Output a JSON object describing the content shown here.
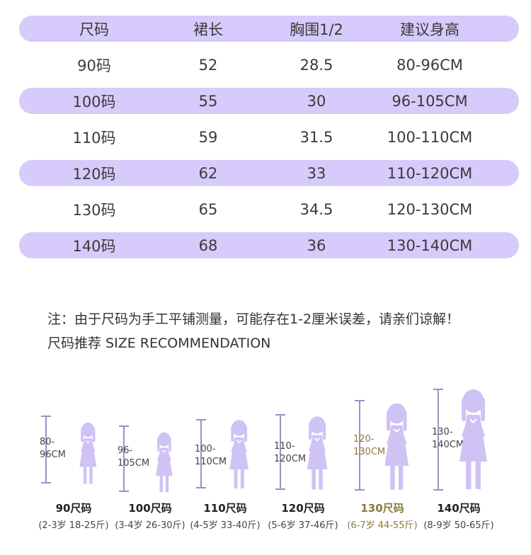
{
  "table": {
    "headers": [
      "尺码",
      "裙长",
      "胸围1/2",
      "建议身高"
    ],
    "rows": [
      [
        "90码",
        "52",
        "28.5",
        "80-96CM"
      ],
      [
        "100码",
        "55",
        "30",
        "96-105CM"
      ],
      [
        "110码",
        "59",
        "31.5",
        "100-110CM"
      ],
      [
        "120码",
        "62",
        "33",
        "110-120CM"
      ],
      [
        "130码",
        "65",
        "34.5",
        "120-130CM"
      ],
      [
        "140码",
        "68",
        "36",
        "130-140CM"
      ]
    ]
  },
  "note": "注：由于尺码为手工平铺测量，可能存在1-2厘米误差，请亲们谅解！",
  "recommendation_title": "尺码推荐  SIZE RECOMMENDATION",
  "sizes": [
    {
      "range_top": "80-",
      "range_bottom": "96CM",
      "name": "90尺码",
      "ages": "(2-3岁 18-25斤)",
      "highlight": false
    },
    {
      "range_top": "96-",
      "range_bottom": "105CM",
      "name": "100尺码",
      "ages": "(3-4岁 26-30斤)",
      "highlight": false
    },
    {
      "range_top": "100-",
      "range_bottom": "110CM",
      "name": "110尺码",
      "ages": "(4-5岁 33-40斤)",
      "highlight": false
    },
    {
      "range_top": "110-",
      "range_bottom": "120CM",
      "name": "120尺码",
      "ages": "(5-6岁 37-46斤)",
      "highlight": false
    },
    {
      "range_top": "120-",
      "range_bottom": "130CM",
      "name": "130尺码",
      "ages": "(6-7岁 44-55斤)",
      "highlight": true
    },
    {
      "range_top": "130-",
      "range_bottom": "140CM",
      "name": "140尺码",
      "ages": "(8-9岁 50-65斤)",
      "highlight": false
    }
  ],
  "colors": {
    "band": "#d6cbfa",
    "figure": "#cfc3f5",
    "ruler": "#9b8fc7",
    "highlight_text": "#8b7a3a"
  }
}
